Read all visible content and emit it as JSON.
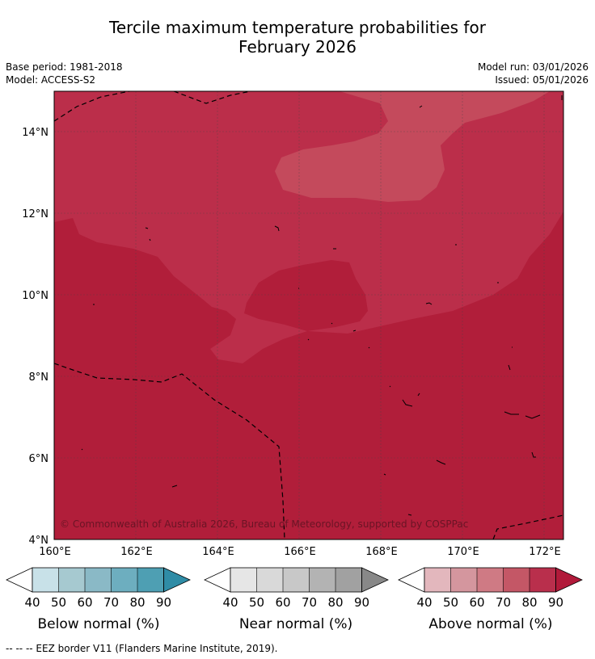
{
  "title_line1": "Tercile maximum temperature probabilities for",
  "title_line2": "February 2026",
  "base_period": "Base period: 1981-2018",
  "model": "Model: ACCESS-S2",
  "model_run": "Model run: 03/01/2026",
  "issued": "Issued: 05/01/2026",
  "copyright": "© Commonwealth of Australia 2026, Bureau of Meteorology, supported by COSPPac",
  "map": {
    "lat_labels": [
      "14°N",
      "12°N",
      "10°N",
      "8°N",
      "6°N",
      "4°N"
    ],
    "lon_labels": [
      "160°E",
      "162°E",
      "164°E",
      "166°E",
      "168°E",
      "170°E",
      "172°E"
    ],
    "colors": {
      "above_70_80": "#c44a5c",
      "above_80_90": "#bb2e4a",
      "above_90": "#b11e3a"
    }
  },
  "colorbars": [
    {
      "label": "Below normal (%)",
      "ticks": [
        "40",
        "50",
        "60",
        "70",
        "80",
        "90"
      ],
      "colors": [
        "#c8e1e8",
        "#a6c9d0",
        "#8ab9c6",
        "#6daebf",
        "#4e9fb3",
        "#2f8ca6"
      ]
    },
    {
      "label": "Near normal (%)",
      "ticks": [
        "40",
        "50",
        "60",
        "70",
        "80",
        "90"
      ],
      "colors": [
        "#e6e6e6",
        "#d9d9d9",
        "#c8c8c8",
        "#b3b3b3",
        "#a1a1a1",
        "#888888"
      ]
    },
    {
      "label": "Above normal (%)",
      "ticks": [
        "40",
        "50",
        "60",
        "70",
        "80",
        "90"
      ],
      "colors": [
        "#e3b7bd",
        "#d4969e",
        "#cf7a84",
        "#c45766",
        "#b92f4c",
        "#b11a3a"
      ]
    }
  ],
  "footer": "--  --  -- EEZ border V11 (Flanders Marine Institute, 2019)."
}
